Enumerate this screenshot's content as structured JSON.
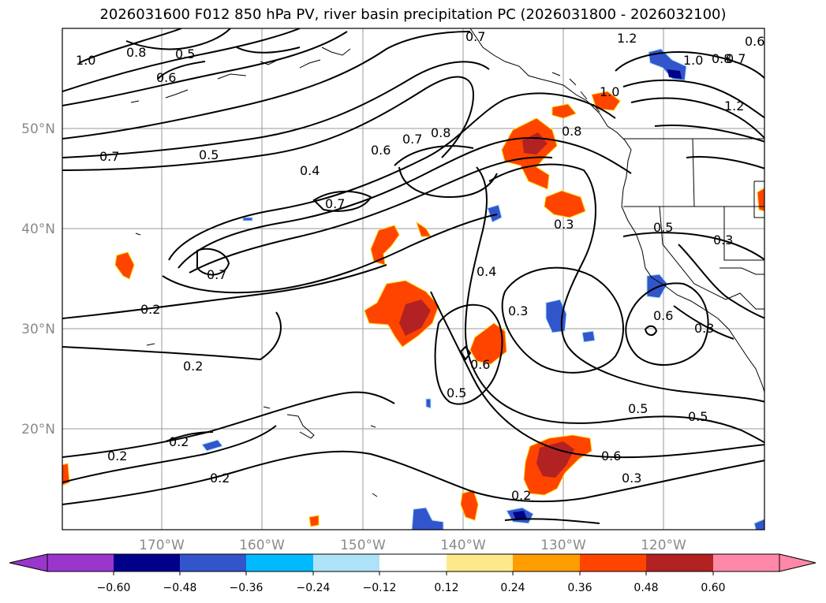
{
  "title": "2026031600 F012 850 hPa PV, river basin precipitation PC (2026031800 - 2026032100)",
  "latitude_labels": [
    "50°N",
    "40°N",
    "30°N",
    "20°N"
  ],
  "longitude_labels": [
    "170°W",
    "160°W",
    "150°W",
    "140°W",
    "130°W",
    "120°W"
  ],
  "contour_labels": [
    "1.0",
    "0.8",
    "0.5",
    "0.6",
    "0.7",
    "1.2",
    "0.7",
    "0.6",
    "1.0",
    "0.8",
    "1.2",
    "0.7",
    "0.5",
    "0.4",
    "0.6",
    "0.7",
    "0.8",
    "0.8",
    "1.0",
    "0.7",
    "0.3",
    "0.7",
    "0.5",
    "0.3",
    "0.4",
    "0.2",
    "0.3",
    "0.6",
    "0.3",
    "0.2",
    "0.6",
    "0.5",
    "0.5",
    "0.5",
    "0.2",
    "0.2",
    "0.6",
    "0.3",
    "0.2",
    "0.2"
  ],
  "colorbar": {
    "ticks": [
      "−0.60",
      "−0.48",
      "−0.36",
      "−0.24",
      "−0.12",
      "0.12",
      "0.24",
      "0.36",
      "0.48",
      "0.60"
    ],
    "colors": [
      "#9b36cc",
      "#01008a",
      "#3355cc",
      "#00b9ff",
      "#aee2f7",
      "#ffffff",
      "#fde98a",
      "#ff9c00",
      "#ff4400",
      "#b22222",
      "#ff88a8"
    ]
  },
  "colors": {
    "contour": "#000000",
    "coastline": "#000000",
    "gridline": "#9a9a9a",
    "axis_label": "#8a8a8a"
  }
}
